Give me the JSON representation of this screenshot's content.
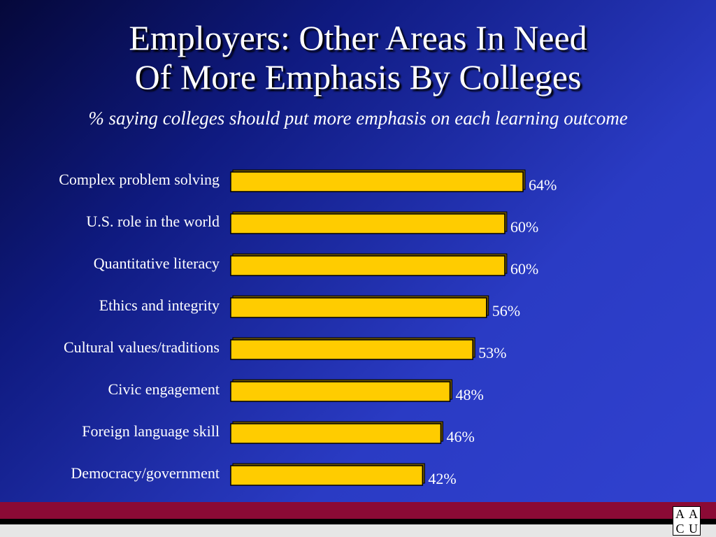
{
  "header": {
    "title_line1": "Employers: Other Areas In Need",
    "title_line2": "Of More Emphasis By Colleges",
    "subtitle": "% saying colleges should put more emphasis on each learning outcome"
  },
  "logo": {
    "letters": [
      "A",
      "A",
      "C",
      "U"
    ]
  },
  "colors": {
    "bar": "#ffcc00",
    "bar_border": "#000000",
    "text": "#ffffff",
    "footer_red": "#8b0a35"
  },
  "chart_data": {
    "type": "bar",
    "orientation": "horizontal",
    "categories": [
      "Complex problem solving",
      "U.S. role in the world",
      "Quantitative literacy",
      "Ethics and integrity",
      "Cultural values/traditions",
      "Civic engagement",
      "Foreign language skill",
      "Democracy/government"
    ],
    "values": [
      64,
      60,
      60,
      56,
      53,
      48,
      46,
      42
    ],
    "value_labels": [
      "64%",
      "60%",
      "60%",
      "56%",
      "53%",
      "48%",
      "46%",
      "42%"
    ],
    "title": "Employers: Other Areas In Need Of More Emphasis By Colleges",
    "subtitle": "% saying colleges should put more emphasis on each learning outcome",
    "xlim": [
      0,
      64
    ],
    "grid": false,
    "legend": "none"
  }
}
